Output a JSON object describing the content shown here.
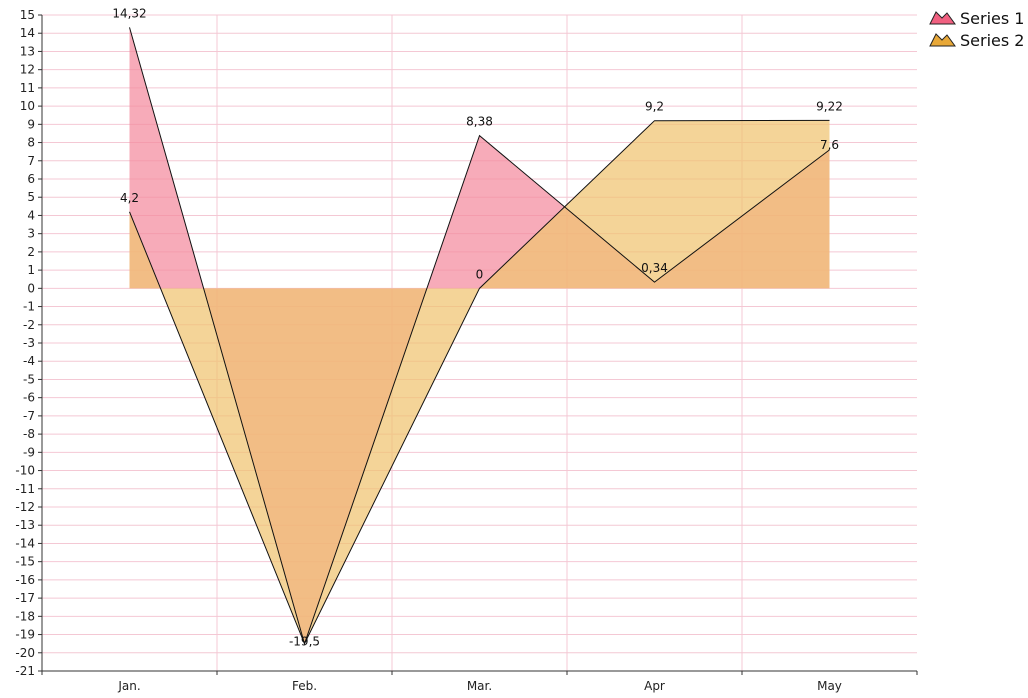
{
  "chart_data": {
    "type": "area",
    "categories": [
      "Jan.",
      "Feb.",
      "Mar.",
      "Apr",
      "May"
    ],
    "series": [
      {
        "name": "Series 1",
        "values": [
          14.32,
          -19.5,
          8.38,
          0.34,
          7.6
        ],
        "labels": [
          "14,32",
          "-19,5",
          "8,38",
          "0,34",
          "7,6"
        ],
        "color": "#F48A9E"
      },
      {
        "name": "Series 2",
        "values": [
          4.2,
          -19.5,
          0,
          9.2,
          9.22
        ],
        "labels": [
          "4,2",
          "",
          "0",
          "9,2",
          "9,22"
        ],
        "color": "#F0C370"
      }
    ],
    "ylim": [
      -21,
      15
    ],
    "yticks": [
      "15",
      "14",
      "13",
      "12",
      "11",
      "10",
      "9",
      "8",
      "7",
      "6",
      "5",
      "4",
      "3",
      "2",
      "1",
      "0",
      "-1",
      "-2",
      "-3",
      "-4",
      "-5",
      "-6",
      "-7",
      "-8",
      "-9",
      "-10",
      "-11",
      "-12",
      "-13",
      "-14",
      "-15",
      "-16",
      "-17",
      "-18",
      "-19",
      "-20",
      "-21"
    ],
    "title": "",
    "xlabel": "",
    "ylabel": "",
    "grid": true,
    "legend_position": "top-right",
    "colors": {
      "grid": "#F4C8D4",
      "axis": "#333333",
      "series1_fill": "#F48A9E",
      "series2_fill": "#F0C370",
      "legend_series1": "#F06080",
      "legend_series2": "#E8A838"
    }
  }
}
